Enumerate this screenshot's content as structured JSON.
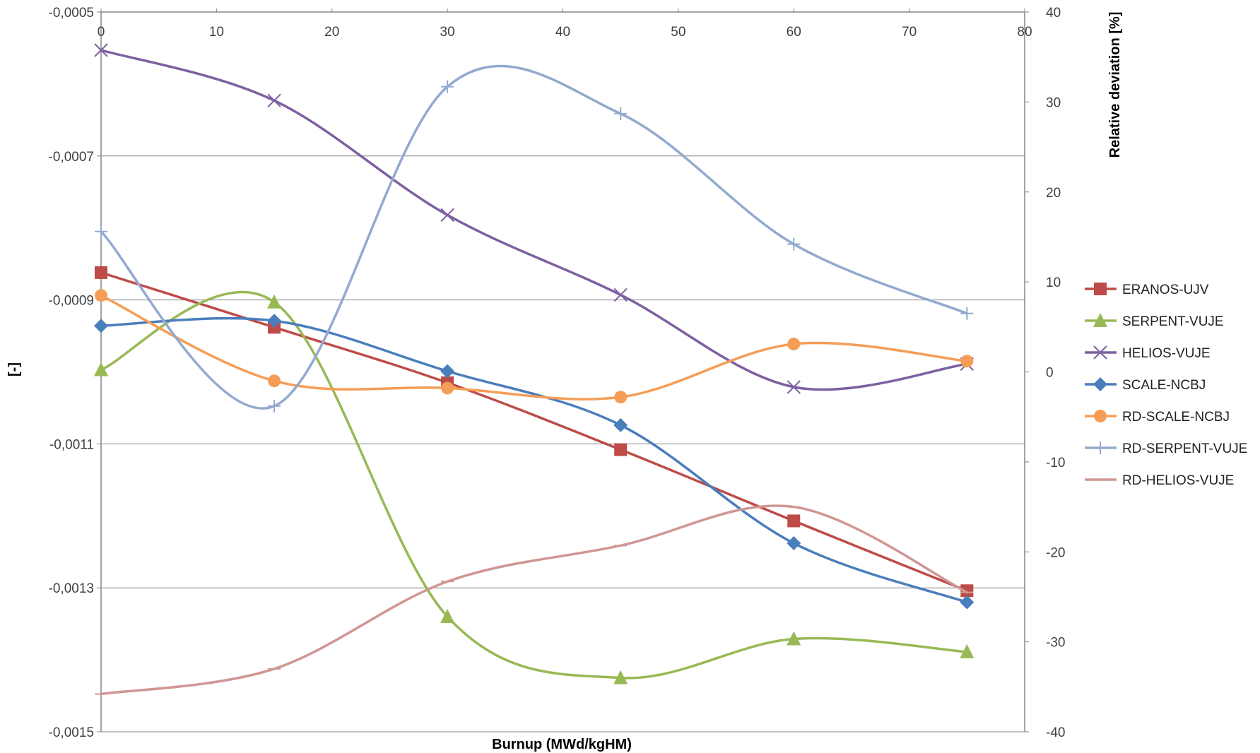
{
  "chart_data": {
    "type": "line",
    "xlabel": "Burnup (MWd/kgHM)",
    "ylabel_left": "[-]",
    "ylabel_right": "Relative deviation [%]",
    "xlim": [
      0,
      80
    ],
    "x_ticks": [
      "0",
      "10",
      "20",
      "30",
      "40",
      "50",
      "60",
      "70",
      "80"
    ],
    "ylim_left": [
      -0.0015,
      -0.0005
    ],
    "y_ticks_left": [
      "-0,0005",
      "-0,0007",
      "-0,0009",
      "-0,0011",
      "-0,0013",
      "-0,0015"
    ],
    "ylim_right": [
      -40,
      40
    ],
    "y_ticks_right": [
      "40",
      "30",
      "20",
      "10",
      "0",
      "-10",
      "-20",
      "-30",
      "-40"
    ],
    "grid": "horizontal major gridlines (left axis)",
    "legend_position": "right",
    "x": [
      0,
      15,
      30,
      45,
      60,
      75
    ],
    "series": [
      {
        "name": "ERANOS-UJV",
        "axis": "left",
        "color": "#be4b48",
        "marker": "square",
        "values": [
          -0.000862,
          -0.000938,
          -0.001015,
          -0.001108,
          -0.001207,
          -0.001304
        ]
      },
      {
        "name": "SERPENT-VUJE",
        "axis": "left",
        "color": "#98b954",
        "marker": "triangle",
        "values": [
          -0.000997,
          -0.000903,
          -0.00134,
          -0.001425,
          -0.001371,
          -0.001389
        ]
      },
      {
        "name": "HELIOS-VUJE",
        "axis": "left",
        "color": "#7d60a0",
        "marker": "x",
        "values": [
          -0.000553,
          -0.000623,
          -0.000782,
          -0.000893,
          -0.001021,
          -0.000989
        ]
      },
      {
        "name": "SCALE-NCBJ",
        "axis": "left",
        "color": "#4a7ebb",
        "marker": "diamond",
        "values": [
          -0.000936,
          -0.000929,
          -0.000999,
          -0.001074,
          -0.001238,
          -0.00132
        ]
      },
      {
        "name": "RD-SCALE-NCBJ",
        "axis": "right",
        "color": "#f59d56",
        "marker": "circle",
        "values": [
          8.5,
          -1.0,
          -1.8,
          -2.8,
          3.1,
          1.2
        ]
      },
      {
        "name": "RD-SERPENT-VUJE",
        "axis": "right",
        "color": "#93a9cf",
        "marker": "plus",
        "values": [
          15.6,
          -3.8,
          31.7,
          28.7,
          14.2,
          6.5
        ]
      },
      {
        "name": "RD-HELIOS-VUJE",
        "axis": "right",
        "color": "#d09694",
        "marker": "dash",
        "values": [
          -35.8,
          -33.0,
          -23.3,
          -19.3,
          -15.0,
          -24.5
        ]
      }
    ]
  }
}
